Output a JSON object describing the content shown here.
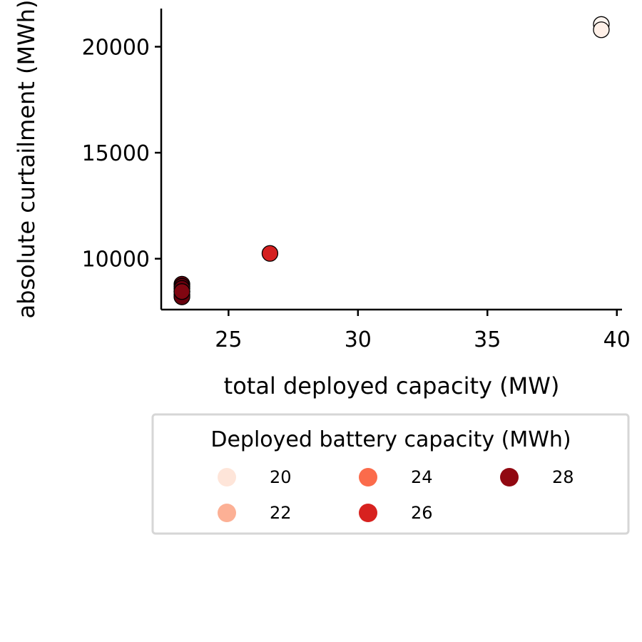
{
  "chart_data": {
    "type": "scatter",
    "xlabel": "total deployed capacity (MW)",
    "ylabel": "absolute curtailment (MWh)",
    "xlim": [
      22.4,
      40.2
    ],
    "ylim": [
      7600,
      21800
    ],
    "xticks": [
      25,
      30,
      35,
      40
    ],
    "yticks": [
      10000,
      15000,
      20000
    ],
    "grid": false,
    "color_scale": "Reds",
    "legend": {
      "title": "Deployed battery capacity (MWh)",
      "placement": "below",
      "entries": [
        {
          "label": "20",
          "color": "#fee5d9"
        },
        {
          "label": "22",
          "color": "#fcb095"
        },
        {
          "label": "24",
          "color": "#fb6b4b"
        },
        {
          "label": "26",
          "color": "#d7221f"
        },
        {
          "label": "28",
          "color": "#910811"
        }
      ]
    },
    "points": [
      {
        "x": 39.4,
        "y": 21050,
        "battery": 20,
        "color": "#fff5f0"
      },
      {
        "x": 39.4,
        "y": 20800,
        "battery": 20,
        "color": "#fff0e8"
      },
      {
        "x": 26.6,
        "y": 10250,
        "battery": 26,
        "color": "#d42020"
      },
      {
        "x": 23.2,
        "y": 8800,
        "battery": 28,
        "color": "#67000d"
      },
      {
        "x": 23.2,
        "y": 8700,
        "battery": 28,
        "color": "#67000d"
      },
      {
        "x": 23.2,
        "y": 8600,
        "battery": 28,
        "color": "#67000d"
      },
      {
        "x": 23.2,
        "y": 8450,
        "battery": 28,
        "color": "#67000d"
      },
      {
        "x": 23.2,
        "y": 8300,
        "battery": 28,
        "color": "#5a000b"
      },
      {
        "x": 23.2,
        "y": 8200,
        "battery": 28,
        "color": "#67000d"
      },
      {
        "x": 23.2,
        "y": 8450,
        "battery": 28,
        "color": "#800611"
      }
    ]
  }
}
